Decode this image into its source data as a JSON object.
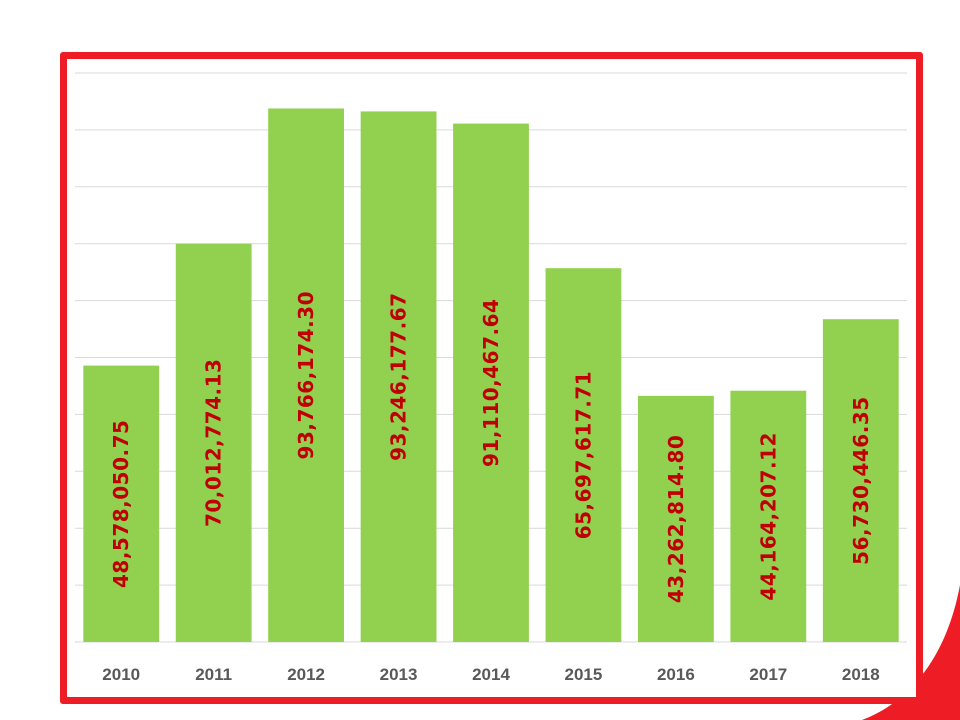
{
  "chart_data": {
    "type": "bar",
    "title": "",
    "xlabel": "",
    "ylabel": "",
    "categories": [
      "2010",
      "2011",
      "2012",
      "2013",
      "2014",
      "2015",
      "2016",
      "2017",
      "2018"
    ],
    "values": [
      48578050.75,
      70012774.13,
      93766174.3,
      93246177.67,
      91110467.64,
      65697617.71,
      43262814.8,
      44164207.12,
      56730446.35
    ],
    "data_labels": [
      "48,578,050.75",
      "70,012,774.13",
      "93,766,174.30",
      "93,246,177.67",
      "91,110,467.64",
      "65,697,617.71",
      "43,262,814.80",
      "44,164,207.12",
      "56,730,446.35"
    ],
    "ylim": [
      0,
      100000000
    ],
    "grid": true,
    "legend": "none",
    "colors": {
      "bar": "#92d050",
      "label": "#c00000",
      "frame": "#ee1c25",
      "grid": "#d9d9d9",
      "tick": "#595959"
    }
  }
}
